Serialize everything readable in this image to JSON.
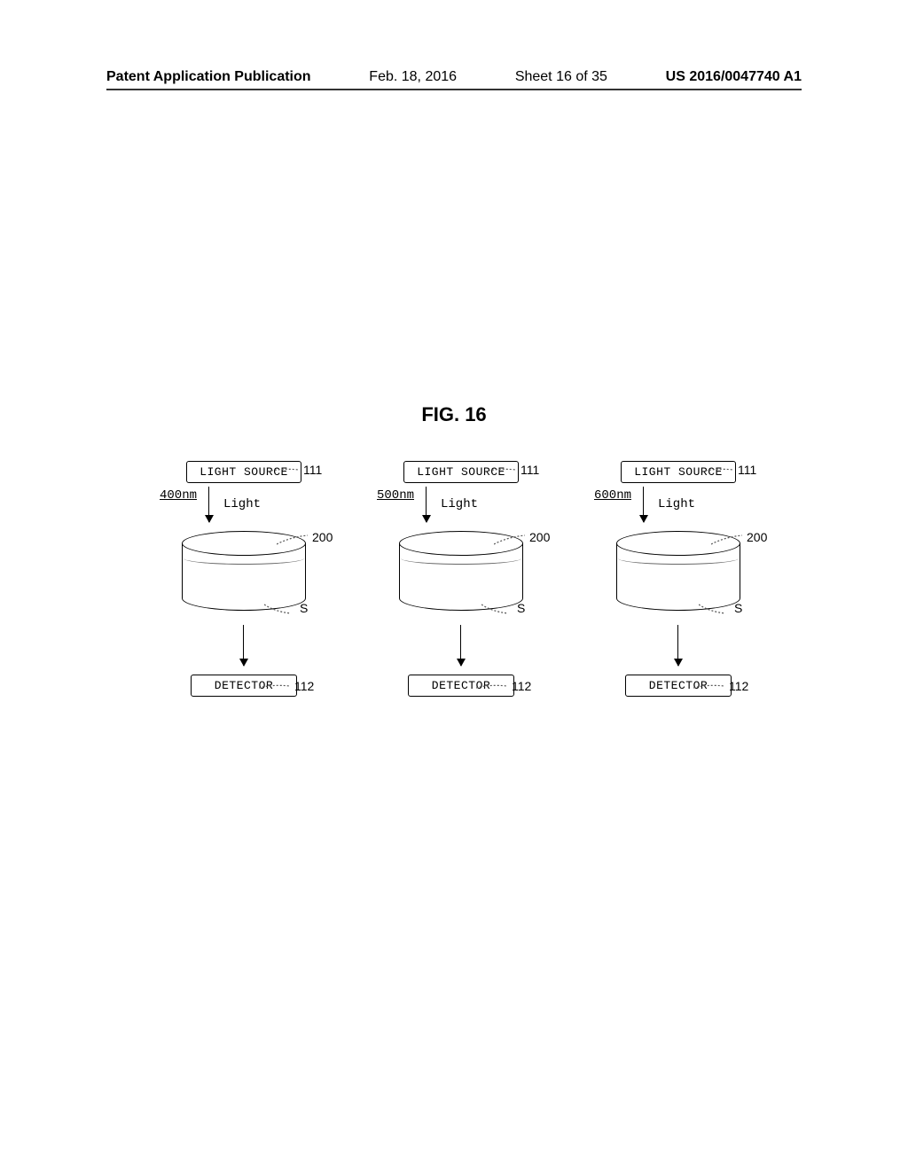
{
  "header": {
    "publication_label": "Patent Application Publication",
    "date": "Feb. 18, 2016",
    "sheet": "Sheet 16 of 35",
    "doc_number": "US 2016/0047740 A1"
  },
  "figure": {
    "title": "FIG. 16",
    "light_source_label": "LIGHT SOURCE",
    "detector_label": "DETECTOR",
    "light_text": "Light",
    "ref_light_source": "111",
    "ref_cuvette": "200",
    "ref_sample": "S",
    "ref_detector": "112",
    "columns": [
      {
        "wavelength": "400nm"
      },
      {
        "wavelength": "500nm"
      },
      {
        "wavelength": "600nm"
      }
    ],
    "colors": {
      "stroke": "#000000",
      "background": "#ffffff",
      "lead_stroke": "#555555"
    }
  }
}
